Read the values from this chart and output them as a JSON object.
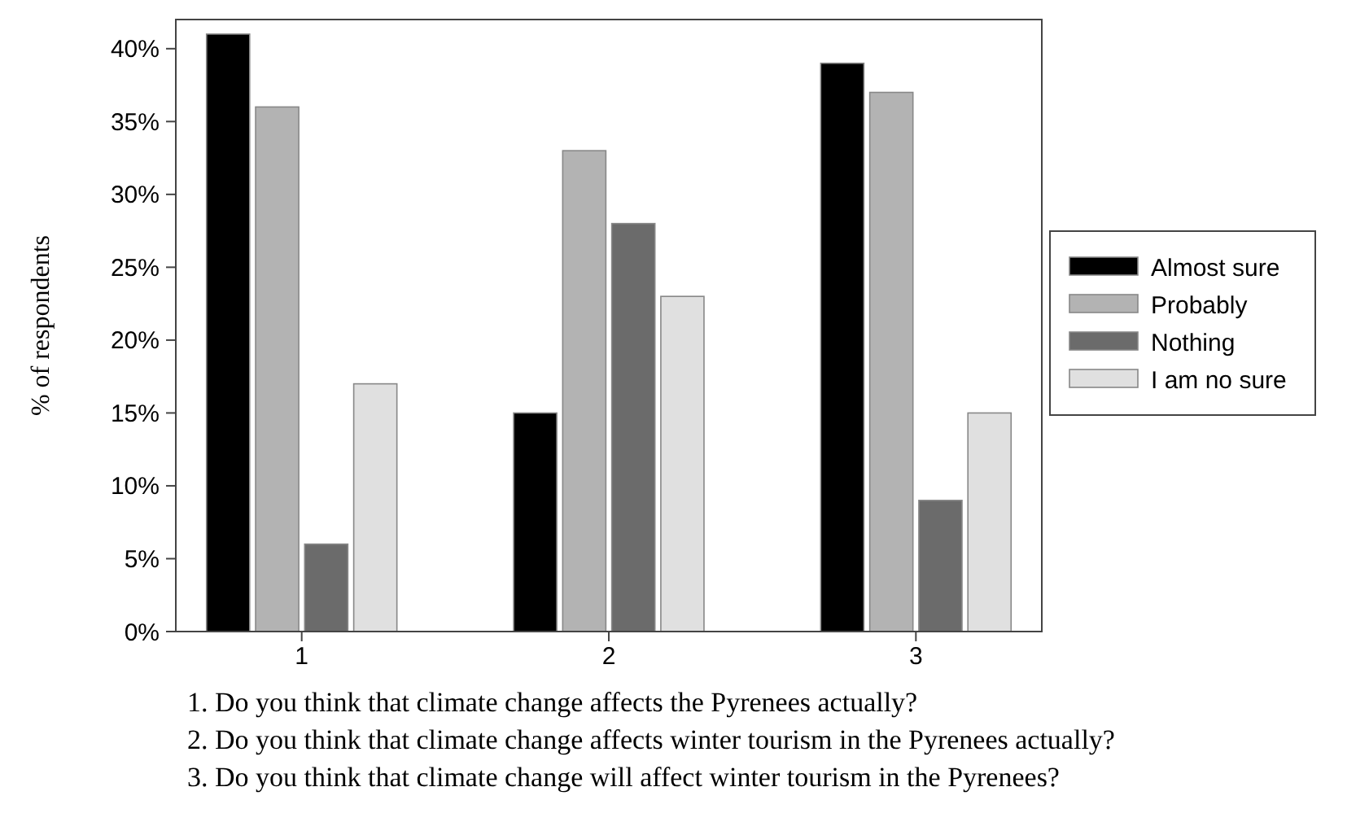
{
  "chart_data": {
    "type": "bar",
    "ylabel": "% of respondents",
    "categories": [
      "1",
      "2",
      "3"
    ],
    "series": [
      {
        "name": "Almost sure",
        "color": "#000000",
        "values": [
          41,
          15,
          39
        ]
      },
      {
        "name": "Probably",
        "color": "#b3b3b3",
        "values": [
          36,
          33,
          37
        ]
      },
      {
        "name": "Nothing",
        "color": "#6b6b6b",
        "values": [
          6,
          28,
          9
        ]
      },
      {
        "name": "I am no sure",
        "color": "#e0e0e0",
        "values": [
          17,
          23,
          15
        ]
      }
    ],
    "ylim": [
      0,
      42
    ],
    "yticks": [
      {
        "value": 0,
        "label": "0%"
      },
      {
        "value": 5,
        "label": "5%"
      },
      {
        "value": 10,
        "label": "10%"
      },
      {
        "value": 15,
        "label": "15%"
      },
      {
        "value": 20,
        "label": "20%"
      },
      {
        "value": 25,
        "label": "25%"
      },
      {
        "value": 30,
        "label": "30%"
      },
      {
        "value": 35,
        "label": "35%"
      },
      {
        "value": 40,
        "label": "40%"
      }
    ],
    "legend": "right",
    "grid": false,
    "annotations": [
      "1. Do you think that climate change affects the Pyrenees actually?",
      "2. Do you think that climate change affects winter tourism in the Pyrenees actually?",
      "3. Do you think that climate change will affect winter tourism in the Pyrenees?"
    ]
  }
}
